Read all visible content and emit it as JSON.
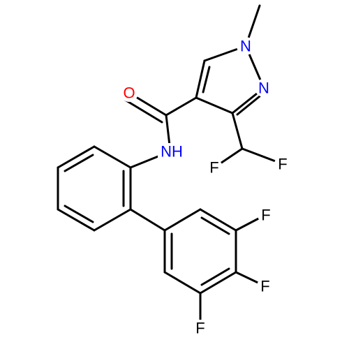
{
  "atoms": [
    {
      "label": "N"
    },
    {
      "label": "N"
    },
    {
      "label": "O"
    },
    {
      "label": "NH"
    },
    {
      "label": "F"
    },
    {
      "label": "F"
    },
    {
      "label": "F"
    },
    {
      "label": "F"
    },
    {
      "label": "F"
    }
  ]
}
